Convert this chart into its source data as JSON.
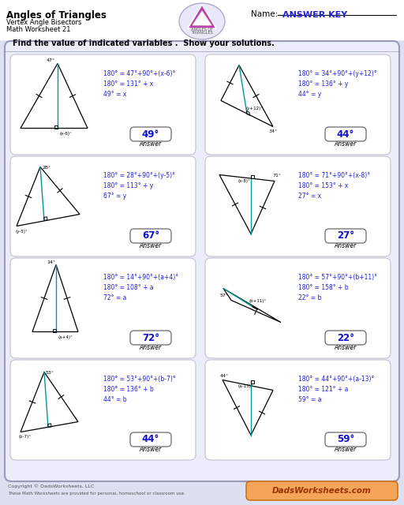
{
  "title": "Angles of Triangles",
  "subtitle1": "Vertex Angle Bisectors",
  "subtitle2": "Math Worksheet 21",
  "name_label": "Name:",
  "answer_key": "ANSWER KEY",
  "instruction": "Find the value of indicated variables .  Show your solutions.",
  "bg_color": "#dde0f0",
  "card_color": "#ffffff",
  "blue": "#2222dd",
  "teal": "#009999",
  "answer_blue": "#1111cc",
  "problems": [
    {
      "equations": [
        "180° = 47°+90°+(x-6)°",
        "180° = 131° + x",
        "49° = x"
      ],
      "answer": "49°",
      "tri_type": "up_bisect",
      "angle_label_top": "47°",
      "angle_label_bot": "(x-6)°"
    },
    {
      "equations": [
        "180° = 34°+90°+(y+12)°",
        "180° = 136° + y",
        "44° = y"
      ],
      "answer": "44°",
      "tri_type": "right_lean",
      "angle_label_top": "(y+12)°",
      "angle_label_bot": "34°"
    },
    {
      "equations": [
        "180° = 28°+90°+(y-5)°",
        "180° = 113° + y",
        "67° = y"
      ],
      "answer": "67°",
      "tri_type": "left_lean",
      "angle_label_top": "28°",
      "angle_label_bot": "(y-5)°"
    },
    {
      "equations": [
        "180° = 71°+90°+(x-8)°",
        "180° = 153° + x",
        "27° = x"
      ],
      "answer": "27°",
      "tri_type": "down_bisect",
      "angle_label_top": "71°",
      "angle_label_bot": "(x-8)°"
    },
    {
      "equations": [
        "180° = 14°+90°+(a+4)°",
        "180° = 108° + a",
        "72° = a"
      ],
      "answer": "72°",
      "tri_type": "up_tall",
      "angle_label_top": "14°",
      "angle_label_bot": "(a+4)°"
    },
    {
      "equations": [
        "180° = 57°+90°+(b+11)°",
        "180° = 158° + b",
        "22° = b"
      ],
      "answer": "22°",
      "tri_type": "flat_right",
      "angle_label_top": "57°",
      "angle_label_bot": "(b+11)°"
    },
    {
      "equations": [
        "180° = 53°+90°+(b-7)°",
        "180° = 136° + b",
        "44° = b"
      ],
      "answer": "44°",
      "tri_type": "left_lean2",
      "angle_label_top": "53°",
      "angle_label_bot": "(b-7)°"
    },
    {
      "equations": [
        "180° = 44°+90°+(a-13)°",
        "180° = 121° + a",
        "59° = a"
      ],
      "answer": "59°",
      "tri_type": "down_bisect2",
      "angle_label_top": "44°",
      "angle_label_bot": "(a-13)°"
    }
  ]
}
